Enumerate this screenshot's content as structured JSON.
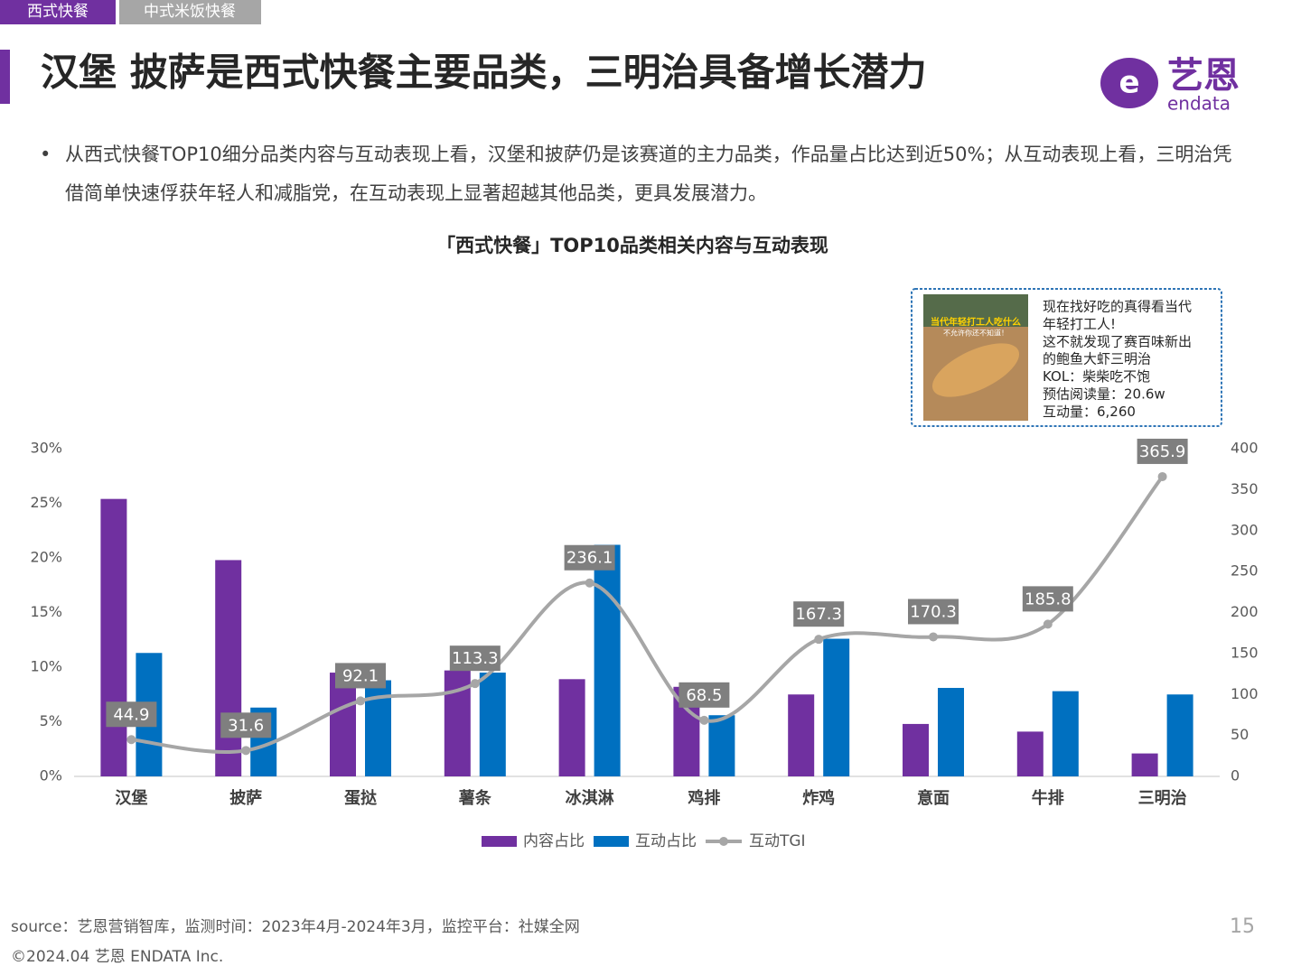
{
  "tabs": [
    "西式快餐",
    "中式米饭快餐"
  ],
  "header": {
    "title": "汉堡 披萨是西式快餐主要品类，三明治具备增长潜力",
    "logo_text": "艺恩",
    "logo_subtext": "endata"
  },
  "bullet": "从西式快餐TOP10细分品类内容与互动表现上看，汉堡和披萨仍是该赛道的主力品类，作品量占比达到近50%；从互动表现上看，三明治凭借简单快速俘获年轻人和减脂党，在互动表现上显著超越其他品类，更具发展潜力。",
  "chart_data": {
    "type": "combo",
    "title": "「西式快餐」TOP10品类相关内容与互动表现",
    "categories": [
      "汉堡",
      "披萨",
      "蛋挞",
      "薯条",
      "冰淇淋",
      "鸡排",
      "炸鸡",
      "意面",
      "牛排",
      "三明治"
    ],
    "series": [
      {
        "name": "内容占比",
        "type": "bar",
        "color": "#7030a0",
        "values": [
          25.4,
          19.8,
          9.5,
          9.7,
          8.9,
          8.2,
          7.5,
          4.8,
          4.1,
          2.1
        ]
      },
      {
        "name": "互动占比",
        "type": "bar",
        "color": "#0070c0",
        "values": [
          11.3,
          6.3,
          8.8,
          9.5,
          21.2,
          5.6,
          12.6,
          8.1,
          7.8,
          7.5
        ]
      },
      {
        "name": "互动TGI",
        "type": "line",
        "axis": "y2",
        "color": "#a6a6a6",
        "values": [
          44.9,
          31.6,
          92.1,
          113.3,
          236.1,
          68.5,
          167.3,
          170.3,
          185.8,
          365.9
        ]
      }
    ],
    "ylim": [
      0,
      30
    ],
    "yticks": [
      {
        "value": 0,
        "label": "0%"
      },
      {
        "value": 5,
        "label": "5%"
      },
      {
        "value": 10,
        "label": "10%"
      },
      {
        "value": 15,
        "label": "15%"
      },
      {
        "value": 20,
        "label": "20%"
      },
      {
        "value": 25,
        "label": "25%"
      },
      {
        "value": 30,
        "label": "30%"
      }
    ],
    "y2lim": [
      0,
      400
    ],
    "y2ticks": [
      0,
      50,
      100,
      150,
      200,
      250,
      300,
      350,
      400
    ],
    "legend": "bottom",
    "annotation": {
      "image_text": [
        "当代年轻打工人吃什么",
        "不允许你还不知道！"
      ],
      "lines": [
        "现在找好吃的真得看当代",
        "年轻打工人!",
        "这不就发现了赛百味新出",
        "的鲍鱼大虾三明治",
        "KOL：柴柴吃不饱",
        "预估阅读量：20.6w",
        "互动量：6,260"
      ]
    }
  },
  "footer": {
    "source": "source：艺恩营销智库，监测时间：2023年4月-2024年3月，监控平台：社媒全网",
    "page": "15",
    "copyright": "©2024.04  艺恩 ENDATA Inc."
  }
}
